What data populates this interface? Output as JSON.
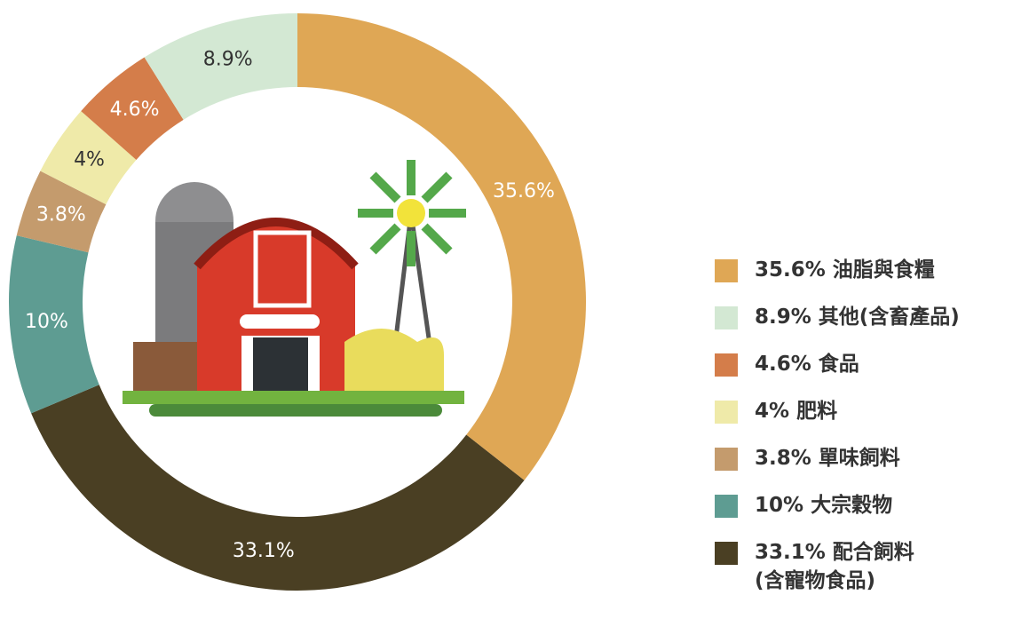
{
  "chart_data": {
    "type": "donut",
    "categories": [
      "油脂與食糧",
      "其他(含畜產品)",
      "食品",
      "肥料",
      "單味飼料",
      "大宗穀物",
      "配合飼料\n(含寵物食品)"
    ],
    "values": [
      35.6,
      8.9,
      4.6,
      4,
      3.8,
      10,
      33.1
    ],
    "value_labels": [
      "35.6%",
      "8.9%",
      "4.6%",
      "4%",
      "3.8%",
      "10%",
      "33.1%"
    ],
    "colors": [
      "#dfa755",
      "#d3e8d3",
      "#d47d4a",
      "#efeaa9",
      "#c49b6d",
      "#5e9c92",
      "#4a3f23"
    ],
    "label_colors": [
      "#ffffff",
      "#333333",
      "#ffffff",
      "#333333",
      "#ffffff",
      "#ffffff",
      "#ffffff"
    ],
    "direction": "counterclockwise",
    "legend": "right"
  }
}
